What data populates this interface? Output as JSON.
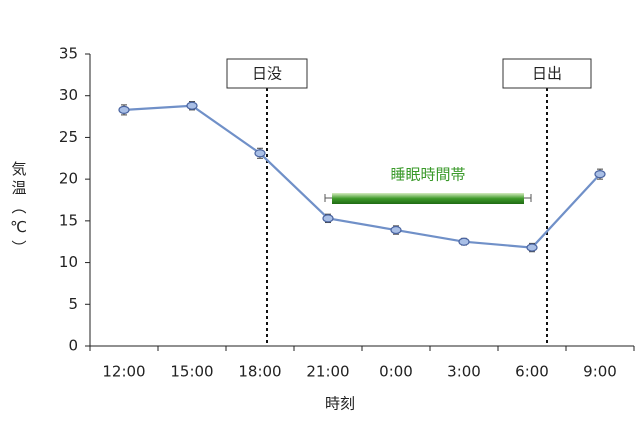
{
  "chart_data": {
    "type": "line",
    "categories": [
      "12:00",
      "15:00",
      "18:00",
      "21:00",
      "0:00",
      "3:00",
      "6:00",
      "9:00"
    ],
    "series": [
      {
        "color": "#7090c8",
        "values": [
          28.3,
          28.8,
          23.1,
          15.3,
          13.9,
          12.5,
          11.8,
          20.6
        ],
        "errors": [
          0.6,
          0.5,
          0.6,
          0.5,
          0.5,
          0.4,
          0.5,
          0.6
        ]
      }
    ],
    "ylim": [
      0,
      35
    ],
    "yticks": [
      0,
      5,
      10,
      15,
      20,
      25,
      30,
      35
    ],
    "y_label": "気温（℃）",
    "x_label": "時刻",
    "annotations": {
      "sunset": "日没",
      "sunrise": "日出",
      "sleep": "睡眠時間帯"
    }
  }
}
